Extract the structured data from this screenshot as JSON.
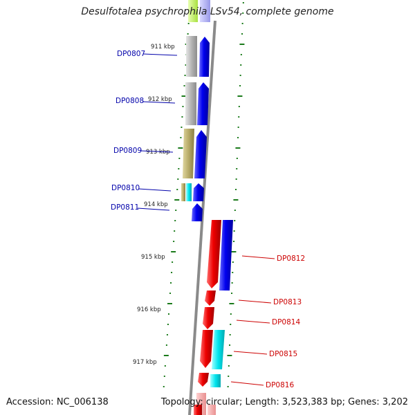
{
  "title": "Desulfotalea psychrophila LSv54, complete genome",
  "footer": {
    "accession": "Accession: NC_006138",
    "summary": "Topology: circular; Length: 3,523,383 bp; Genes: 3,202"
  },
  "colors": {
    "forward_strand": "#0000ee",
    "reverse_strand": "#ee0000",
    "cyan_track": "#00e5ee",
    "grey_track": "#b4b4b4",
    "olive_track": "#b8ac6a",
    "tick": "#1a7a1a",
    "backbone": "#8a8a8a"
  },
  "kbp_labels": [
    "911 kbp",
    "912 kbp",
    "913 kbp",
    "914 kbp",
    "915 kbp",
    "916 kbp",
    "917 kbp"
  ],
  "genes": [
    {
      "name": "DP0807",
      "strand": "forward",
      "color": "#0000aa"
    },
    {
      "name": "DP0808",
      "strand": "forward",
      "color": "#0000aa"
    },
    {
      "name": "DP0809",
      "strand": "forward",
      "color": "#0000aa"
    },
    {
      "name": "DP0810",
      "strand": "forward",
      "color": "#0000aa"
    },
    {
      "name": "DP0811",
      "strand": "forward",
      "color": "#0000aa"
    },
    {
      "name": "DP0812",
      "strand": "reverse",
      "color": "#cc0000"
    },
    {
      "name": "DP0813",
      "strand": "reverse",
      "color": "#cc0000"
    },
    {
      "name": "DP0814",
      "strand": "reverse",
      "color": "#cc0000"
    },
    {
      "name": "DP0815",
      "strand": "reverse",
      "color": "#cc0000"
    },
    {
      "name": "DP0816",
      "strand": "reverse",
      "color": "#cc0000"
    }
  ]
}
